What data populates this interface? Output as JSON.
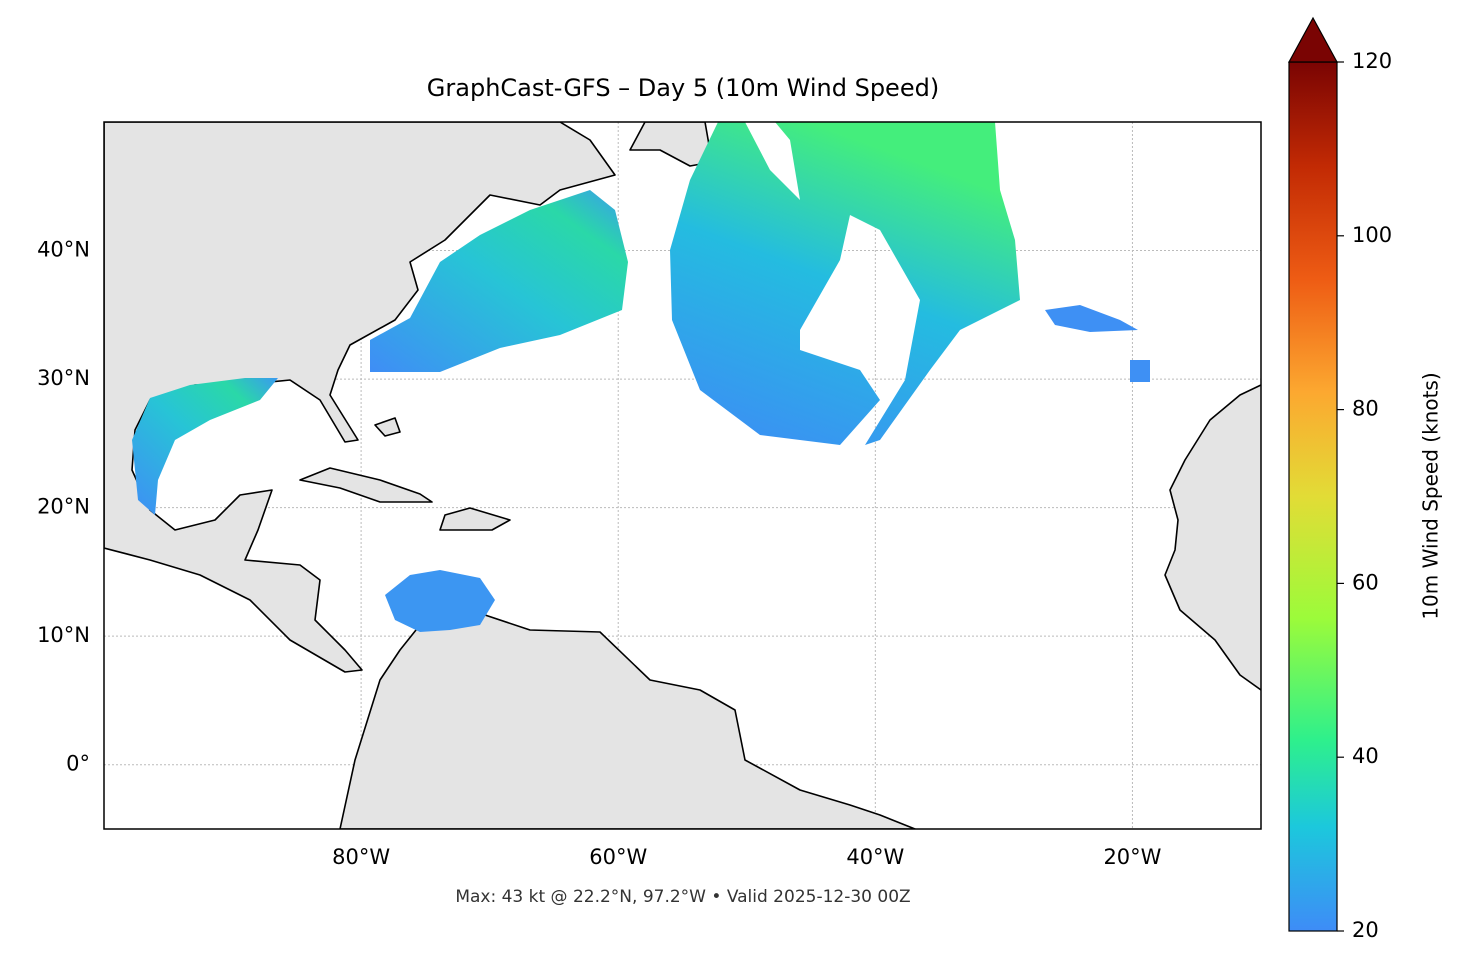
{
  "title": "GraphCast-GFS – Day 5 (10m Wind Speed)",
  "footer": "Max: 43 kt @ 22.2°N, 97.2°W • Valid 2025-12-30 00Z",
  "map": {
    "lon_range": [
      -100,
      -10
    ],
    "lat_range": [
      -5,
      50
    ],
    "lon_ticks": [
      {
        "value": -80,
        "label": "80°W"
      },
      {
        "value": -60,
        "label": "60°W"
      },
      {
        "value": -40,
        "label": "40°W"
      },
      {
        "value": -20,
        "label": "20°W"
      }
    ],
    "lat_ticks": [
      {
        "value": 0,
        "label": "0°"
      },
      {
        "value": 10,
        "label": "10°N"
      },
      {
        "value": 20,
        "label": "20°N"
      },
      {
        "value": 30,
        "label": "30°N"
      },
      {
        "value": 40,
        "label": "40°N"
      }
    ],
    "grid": true
  },
  "colorbar": {
    "label": "10m Wind Speed (knots)",
    "range": [
      20,
      120
    ],
    "ticks": [
      20,
      40,
      60,
      80,
      100,
      120
    ],
    "extend": "max"
  }
}
